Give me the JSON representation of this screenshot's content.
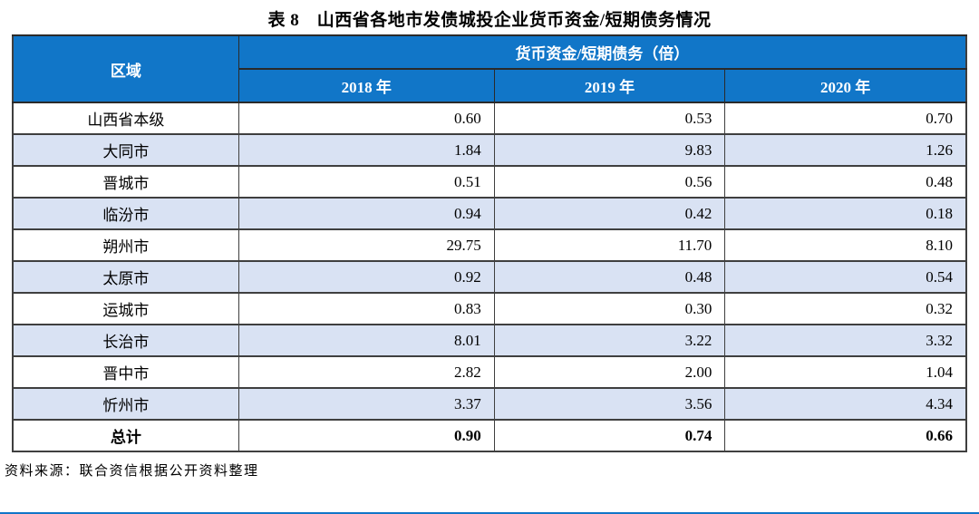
{
  "title": "表 8　山西省各地市发债城投企业货币资金/短期债务情况",
  "table": {
    "region_header": "区域",
    "group_header": "货币资金/短期债务（倍）",
    "year_headers": [
      "2018 年",
      "2019 年",
      "2020 年"
    ],
    "rows": [
      {
        "region": "山西省本级",
        "values": [
          "0.60",
          "0.53",
          "0.70"
        ],
        "total": false
      },
      {
        "region": "大同市",
        "values": [
          "1.84",
          "9.83",
          "1.26"
        ],
        "total": false
      },
      {
        "region": "晋城市",
        "values": [
          "0.51",
          "0.56",
          "0.48"
        ],
        "total": false
      },
      {
        "region": "临汾市",
        "values": [
          "0.94",
          "0.42",
          "0.18"
        ],
        "total": false
      },
      {
        "region": "朔州市",
        "values": [
          "29.75",
          "11.70",
          "8.10"
        ],
        "total": false
      },
      {
        "region": "太原市",
        "values": [
          "0.92",
          "0.48",
          "0.54"
        ],
        "total": false
      },
      {
        "region": "运城市",
        "values": [
          "0.83",
          "0.30",
          "0.32"
        ],
        "total": false
      },
      {
        "region": "长治市",
        "values": [
          "8.01",
          "3.22",
          "3.32"
        ],
        "total": false
      },
      {
        "region": "晋中市",
        "values": [
          "2.82",
          "2.00",
          "1.04"
        ],
        "total": false
      },
      {
        "region": "忻州市",
        "values": [
          "3.37",
          "3.56",
          "4.34"
        ],
        "total": false
      },
      {
        "region": "总计",
        "values": [
          "0.90",
          "0.74",
          "0.66"
        ],
        "total": true
      }
    ]
  },
  "footer": {
    "source": "资料来源：联合资信根据公开资料整理"
  },
  "colors": {
    "header_blue": "#1176C8",
    "zebra_blue": "#D9E2F3",
    "border_dark": "#3F3F3F",
    "bottom_rule_blue": "#1176C8"
  }
}
